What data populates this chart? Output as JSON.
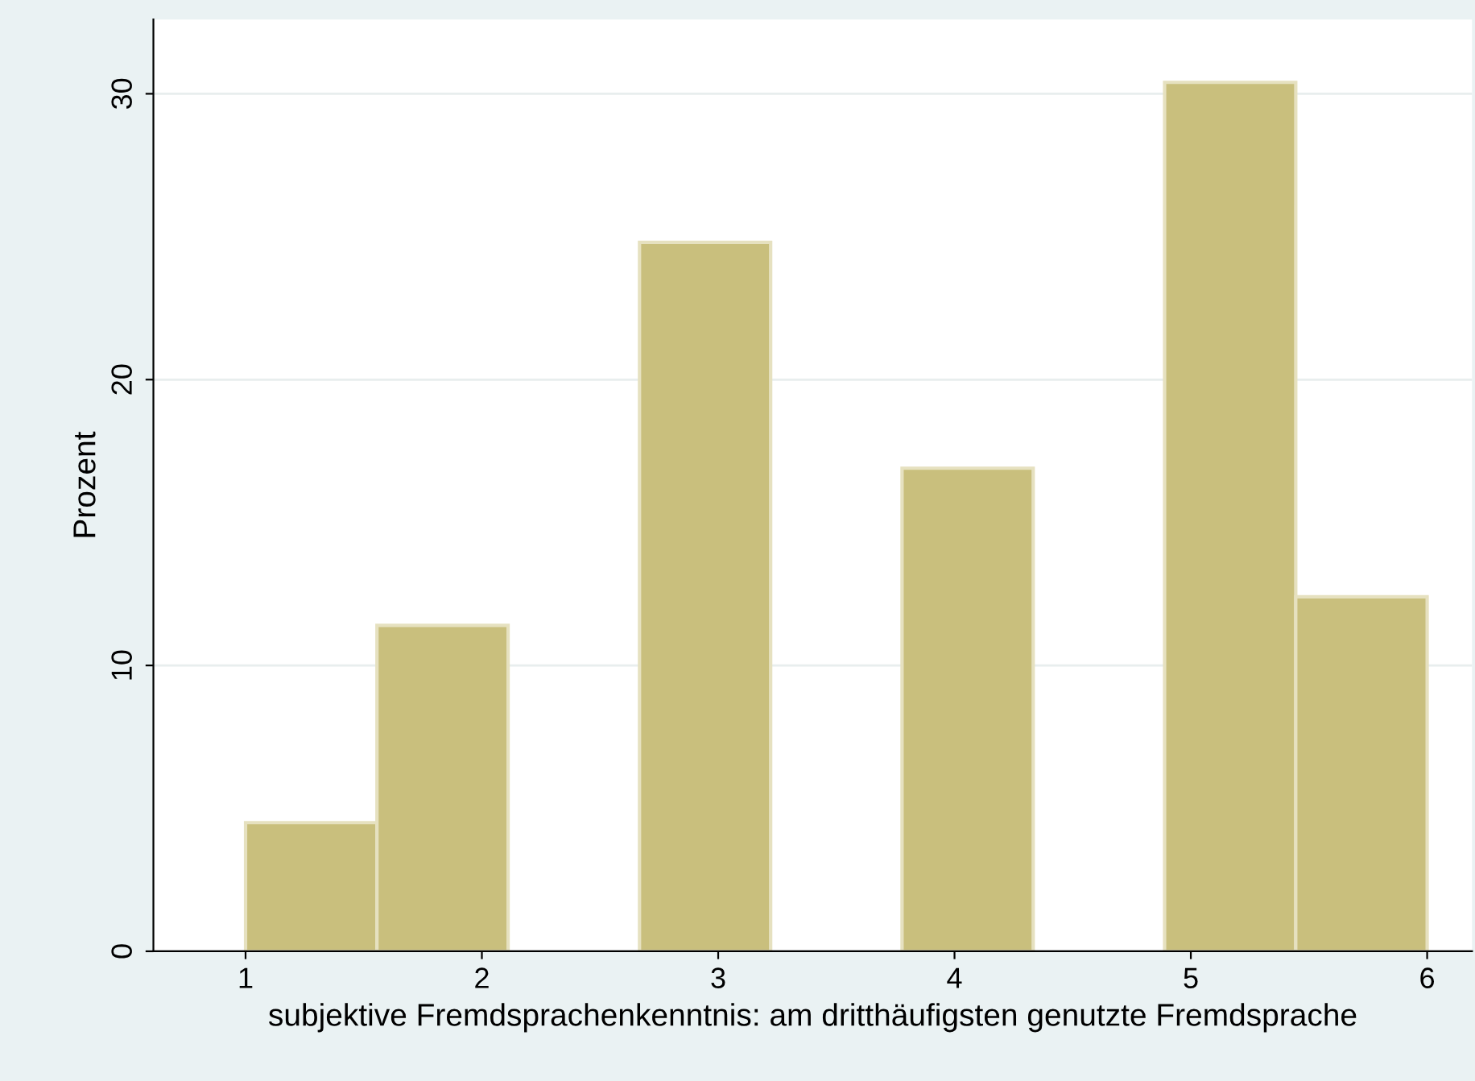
{
  "chart_data": {
    "type": "histogram",
    "xlabel": "subjektive Fremdsprachenkenntnis: am dritthäufigsten genutzte Fremdsprache",
    "ylabel": "Prozent",
    "bins": [
      1,
      1.556,
      2.111,
      2.667,
      3.222,
      3.778,
      4.333,
      4.889,
      5.444,
      6
    ],
    "values": [
      4.5,
      11.4,
      0,
      24.8,
      0,
      16.9,
      0,
      30.4,
      12.4
    ],
    "color": "#c9bf7d",
    "xlim": [
      0.61,
      6.19
    ],
    "xticks": [
      1,
      2,
      3,
      4,
      5,
      6
    ],
    "ylim": [
      0,
      32.6
    ],
    "yticks": [
      0,
      10,
      20,
      30
    ],
    "grid": "y"
  }
}
